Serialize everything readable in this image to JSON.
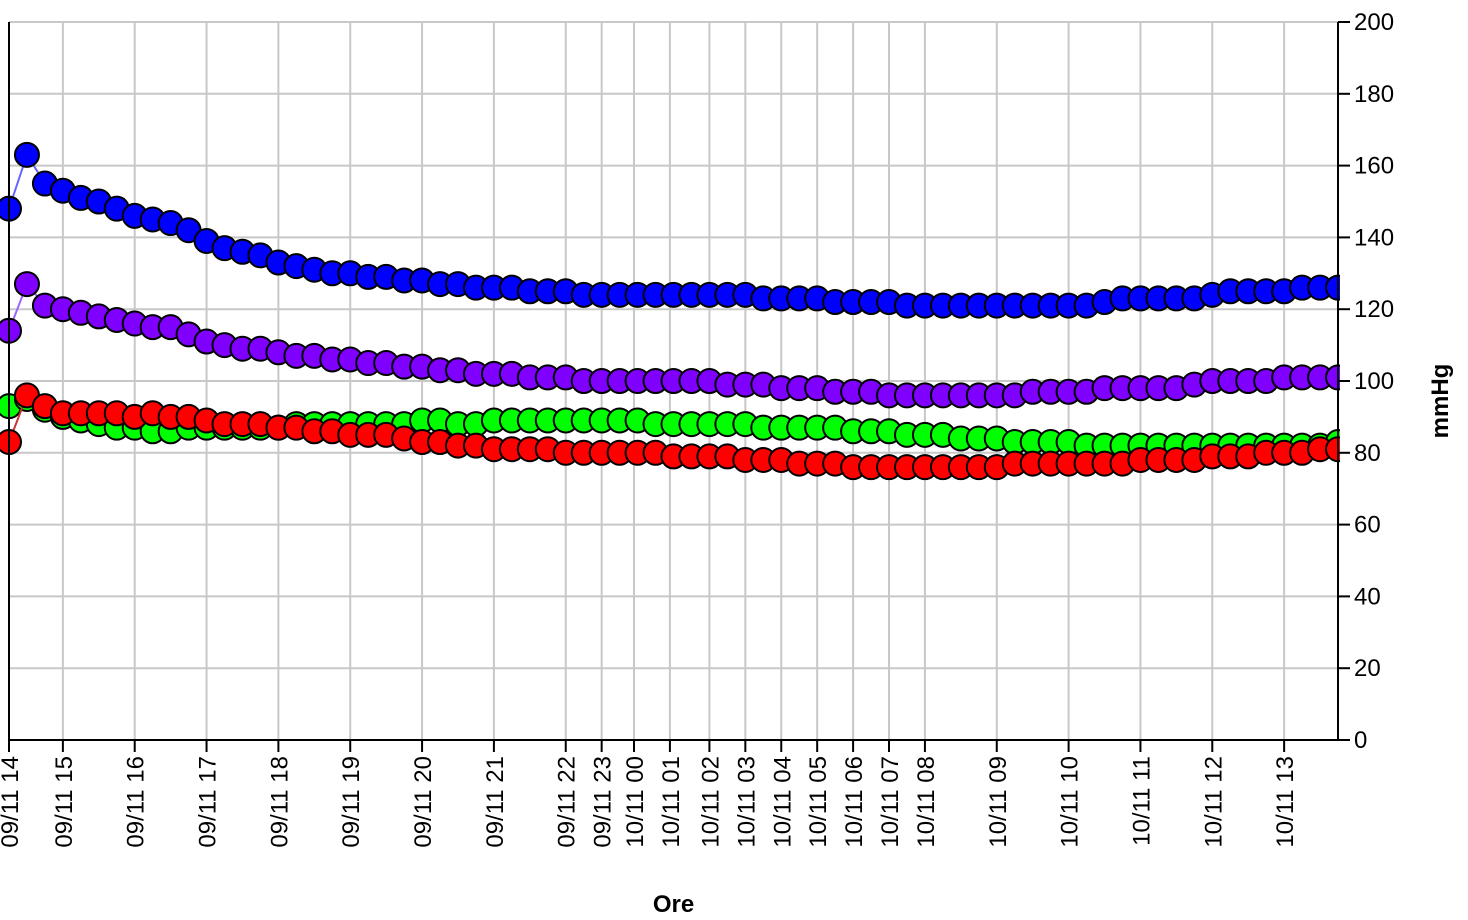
{
  "chart_data": {
    "type": "line",
    "xlabel": "Ore",
    "ylabel": "mmHg",
    "ylim": [
      0,
      200
    ],
    "y_ticks": [
      0,
      20,
      40,
      60,
      80,
      100,
      120,
      140,
      160,
      180,
      200
    ],
    "y_axis_side": "right",
    "grid": true,
    "x_tick_labels": [
      "09/11 14",
      "09/11 15",
      "09/11 16",
      "09/11 17",
      "09/11 18",
      "09/11 19",
      "09/11 20",
      "09/11 21",
      "09/11 22",
      "09/11 23",
      "10/11 00",
      "10/11 01",
      "10/11 02",
      "10/11 03",
      "10/11 04",
      "10/11 05",
      "10/11 06",
      "10/11 07",
      "10/11 08",
      "10/11 09",
      "10/11 10",
      "10/11 11",
      "10/11 12",
      "10/11 13"
    ],
    "x_tick_positions": [
      0,
      0.75,
      1.75,
      2.75,
      3.75,
      4.75,
      5.75,
      6.75,
      7.75,
      8.25,
      8.7,
      9.2,
      9.75,
      10.25,
      10.75,
      11.25,
      11.75,
      12.25,
      12.75,
      13.75,
      14.75,
      15.75,
      16.75,
      17.75
    ],
    "x_range": [
      0,
      18.5
    ],
    "series": [
      {
        "color": "#0000ff",
        "line_color": "#6666ff",
        "x": [
          0,
          0.25,
          0.5,
          0.75,
          1,
          1.25,
          1.5,
          1.75,
          2,
          2.25,
          2.5,
          2.75,
          3,
          3.25,
          3.5,
          3.75,
          4,
          4.25,
          4.5,
          4.75,
          5,
          5.25,
          5.5,
          5.75,
          6,
          6.25,
          6.5,
          6.75,
          7,
          7.25,
          7.5,
          7.75,
          8,
          8.25,
          8.5,
          8.75,
          9,
          9.25,
          9.5,
          9.75,
          10,
          10.25,
          10.5,
          10.75,
          11,
          11.25,
          11.5,
          11.75,
          12,
          12.25,
          12.5,
          12.75,
          13,
          13.25,
          13.5,
          13.75,
          14,
          14.25,
          14.5,
          14.75,
          15,
          15.25,
          15.5,
          15.75,
          16,
          16.25,
          16.5,
          16.75,
          17,
          17.25,
          17.5,
          17.75,
          18,
          18.25,
          18.5
        ],
        "values": [
          148,
          163,
          155,
          153,
          151,
          150,
          148,
          146,
          145,
          144,
          142,
          139,
          137,
          136,
          135,
          133,
          132,
          131,
          130,
          130,
          129,
          129,
          128,
          128,
          127,
          127,
          126,
          126,
          126,
          125,
          125,
          125,
          124,
          124,
          124,
          124,
          124,
          124,
          124,
          124,
          124,
          124,
          123,
          123,
          123,
          123,
          122,
          122,
          122,
          122,
          121,
          121,
          121,
          121,
          121,
          121,
          121,
          121,
          121,
          121,
          121,
          122,
          123,
          123,
          123,
          123,
          123,
          124,
          125,
          125,
          125,
          125,
          126,
          126,
          126
        ]
      },
      {
        "color": "#7f00ff",
        "line_color": "#9966ff",
        "x": [
          0,
          0.25,
          0.5,
          0.75,
          1,
          1.25,
          1.5,
          1.75,
          2,
          2.25,
          2.5,
          2.75,
          3,
          3.25,
          3.5,
          3.75,
          4,
          4.25,
          4.5,
          4.75,
          5,
          5.25,
          5.5,
          5.75,
          6,
          6.25,
          6.5,
          6.75,
          7,
          7.25,
          7.5,
          7.75,
          8,
          8.25,
          8.5,
          8.75,
          9,
          9.25,
          9.5,
          9.75,
          10,
          10.25,
          10.5,
          10.75,
          11,
          11.25,
          11.5,
          11.75,
          12,
          12.25,
          12.5,
          12.75,
          13,
          13.25,
          13.5,
          13.75,
          14,
          14.25,
          14.5,
          14.75,
          15,
          15.25,
          15.5,
          15.75,
          16,
          16.25,
          16.5,
          16.75,
          17,
          17.25,
          17.5,
          17.75,
          18,
          18.25,
          18.5
        ],
        "values": [
          114,
          127,
          121,
          120,
          119,
          118,
          117,
          116,
          115,
          115,
          113,
          111,
          110,
          109,
          109,
          108,
          107,
          107,
          106,
          106,
          105,
          105,
          104,
          104,
          103,
          103,
          102,
          102,
          102,
          101,
          101,
          101,
          100,
          100,
          100,
          100,
          100,
          100,
          100,
          100,
          99,
          99,
          99,
          98,
          98,
          98,
          97,
          97,
          97,
          96,
          96,
          96,
          96,
          96,
          96,
          96,
          96,
          97,
          97,
          97,
          97,
          98,
          98,
          98,
          98,
          98,
          99,
          100,
          100,
          100,
          100,
          101,
          101,
          101,
          101
        ]
      },
      {
        "color": "#00ff00",
        "line_color": "#66cc66",
        "x": [
          0,
          0.25,
          0.5,
          0.75,
          1,
          1.25,
          1.5,
          1.75,
          2,
          2.25,
          2.5,
          2.75,
          3,
          3.25,
          3.5,
          3.75,
          4,
          4.25,
          4.5,
          4.75,
          5,
          5.25,
          5.5,
          5.75,
          6,
          6.25,
          6.5,
          6.75,
          7,
          7.25,
          7.5,
          7.75,
          8,
          8.25,
          8.5,
          8.75,
          9,
          9.25,
          9.5,
          9.75,
          10,
          10.25,
          10.5,
          10.75,
          11,
          11.25,
          11.5,
          11.75,
          12,
          12.25,
          12.5,
          12.75,
          13,
          13.25,
          13.5,
          13.75,
          14,
          14.25,
          14.5,
          14.75,
          15,
          15.25,
          15.5,
          15.75,
          16,
          16.25,
          16.5,
          16.75,
          17,
          17.25,
          17.5,
          17.75,
          18,
          18.25,
          18.5
        ],
        "values": [
          93,
          95,
          92,
          90,
          89,
          88,
          87,
          87,
          86,
          86,
          87,
          87,
          87,
          87,
          87,
          87,
          88,
          88,
          88,
          88,
          88,
          88,
          88,
          89,
          89,
          88,
          88,
          89,
          89,
          89,
          89,
          89,
          89,
          89,
          89,
          89,
          88,
          88,
          88,
          88,
          88,
          88,
          87,
          87,
          87,
          87,
          87,
          86,
          86,
          86,
          85,
          85,
          85,
          84,
          84,
          84,
          83,
          83,
          83,
          83,
          82,
          82,
          82,
          82,
          82,
          82,
          82,
          82,
          82,
          82,
          82,
          82,
          82,
          82,
          83
        ]
      },
      {
        "color": "#ff0000",
        "line_color": "#cc3333",
        "x": [
          0,
          0.25,
          0.5,
          0.75,
          1,
          1.25,
          1.5,
          1.75,
          2,
          2.25,
          2.5,
          2.75,
          3,
          3.25,
          3.5,
          3.75,
          4,
          4.25,
          4.5,
          4.75,
          5,
          5.25,
          5.5,
          5.75,
          6,
          6.25,
          6.5,
          6.75,
          7,
          7.25,
          7.5,
          7.75,
          8,
          8.25,
          8.5,
          8.75,
          9,
          9.25,
          9.5,
          9.75,
          10,
          10.25,
          10.5,
          10.75,
          11,
          11.25,
          11.5,
          11.75,
          12,
          12.25,
          12.5,
          12.75,
          13,
          13.25,
          13.5,
          13.75,
          14,
          14.25,
          14.5,
          14.75,
          15,
          15.25,
          15.5,
          15.75,
          16,
          16.25,
          16.5,
          16.75,
          17,
          17.25,
          17.5,
          17.75,
          18,
          18.25,
          18.5
        ],
        "values": [
          83,
          96,
          93,
          91,
          91,
          91,
          91,
          90,
          91,
          90,
          90,
          89,
          88,
          88,
          88,
          87,
          87,
          86,
          86,
          85,
          85,
          85,
          84,
          83,
          83,
          82,
          82,
          81,
          81,
          81,
          81,
          80,
          80,
          80,
          80,
          80,
          80,
          79,
          79,
          79,
          79,
          78,
          78,
          78,
          77,
          77,
          77,
          76,
          76,
          76,
          76,
          76,
          76,
          76,
          76,
          76,
          77,
          77,
          77,
          77,
          77,
          77,
          77,
          78,
          78,
          78,
          78,
          79,
          79,
          79,
          80,
          80,
          80,
          81,
          81
        ]
      }
    ]
  }
}
